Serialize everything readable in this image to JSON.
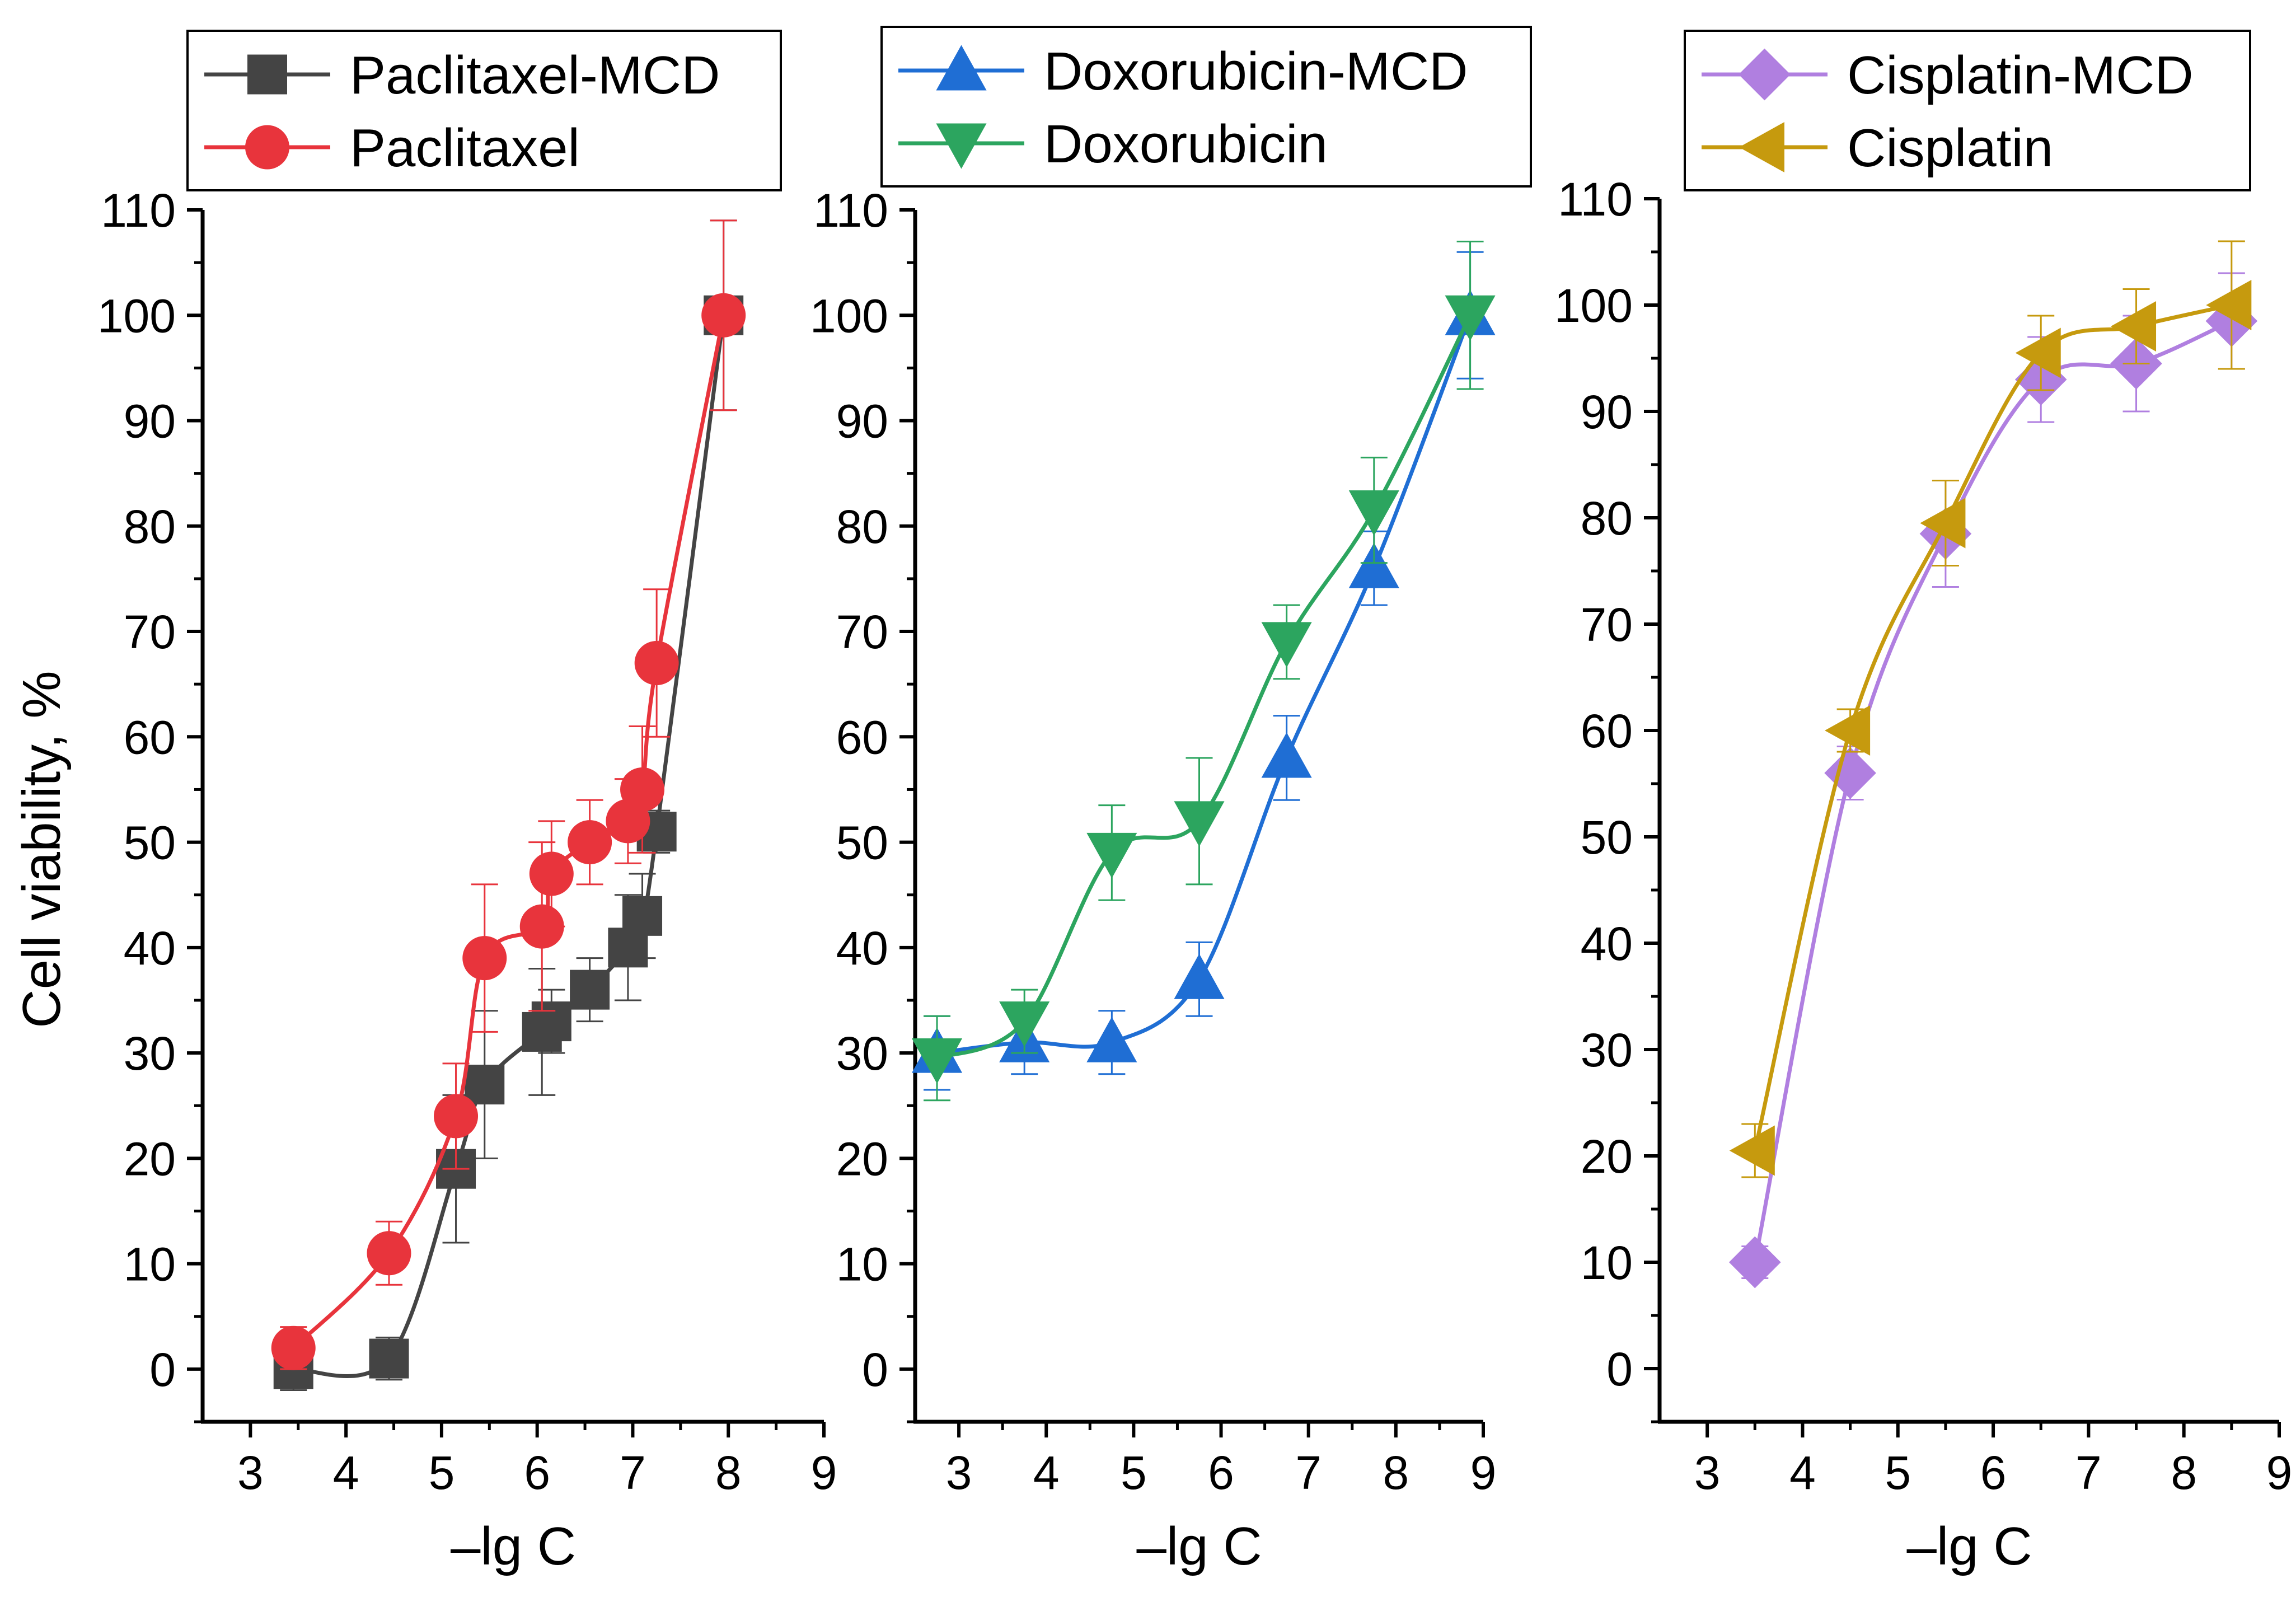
{
  "chart_data": [
    {
      "type": "line",
      "xlabel": "–lg C",
      "ylabel": "Cell viability, %",
      "xlim": [
        2.5,
        9
      ],
      "ylim": [
        -5,
        110
      ],
      "xticks": [
        3,
        4,
        5,
        6,
        7,
        8,
        9
      ],
      "yticks": [
        0,
        10,
        20,
        30,
        40,
        50,
        60,
        70,
        80,
        90,
        100,
        110
      ],
      "legend": "top",
      "series": [
        {
          "name": "Paclitaxel-MCD",
          "color": "#444444",
          "marker": "square",
          "x": [
            3.45,
            4.45,
            5.15,
            5.45,
            6.05,
            6.15,
            6.55,
            6.95,
            7.1,
            7.25,
            7.95
          ],
          "y": [
            0,
            1,
            19,
            27,
            32,
            33,
            36,
            40,
            43,
            51,
            100
          ],
          "err": [
            2,
            2,
            7,
            7,
            6,
            3,
            3,
            5,
            4,
            2,
            9
          ]
        },
        {
          "name": "Paclitaxel",
          "color": "#e8343c",
          "marker": "circle",
          "x": [
            3.45,
            4.45,
            5.15,
            5.45,
            6.05,
            6.15,
            6.55,
            6.95,
            7.1,
            7.25,
            7.95
          ],
          "y": [
            2,
            11,
            24,
            39,
            42,
            47,
            50,
            52,
            55,
            67,
            100
          ],
          "err": [
            2,
            3,
            5,
            7,
            8,
            5,
            4,
            4,
            6,
            7,
            9
          ]
        }
      ]
    },
    {
      "type": "line",
      "xlabel": "–lg C",
      "ylabel": "",
      "xlim": [
        2.5,
        9
      ],
      "ylim": [
        -5,
        110
      ],
      "xticks": [
        3,
        4,
        5,
        6,
        7,
        8,
        9
      ],
      "yticks": [
        0,
        10,
        20,
        30,
        40,
        50,
        60,
        70,
        80,
        90,
        100,
        110
      ],
      "legend": "top",
      "series": [
        {
          "name": "Doxorubicin-MCD",
          "color": "#1f6ed4",
          "marker": "triangle-up",
          "x": [
            2.75,
            3.75,
            4.75,
            5.75,
            6.75,
            7.75,
            8.85
          ],
          "y": [
            30,
            31,
            31,
            37,
            58,
            76,
            100
          ],
          "err": [
            3.5,
            3,
            3,
            3.5,
            4,
            3.5,
            6
          ]
        },
        {
          "name": "Doxorubicin",
          "color": "#2ca55f",
          "marker": "triangle-down",
          "x": [
            2.75,
            3.75,
            4.75,
            5.75,
            6.75,
            7.75,
            8.85
          ],
          "y": [
            29.5,
            33,
            49,
            52,
            69,
            81.5,
            100
          ],
          "err": [
            4,
            3,
            4.5,
            6,
            3.5,
            5,
            7
          ]
        }
      ]
    },
    {
      "type": "line",
      "xlabel": "–lg C",
      "ylabel": "",
      "xlim": [
        2.5,
        9
      ],
      "ylim": [
        -5,
        110
      ],
      "xticks": [
        3,
        4,
        5,
        6,
        7,
        8,
        9
      ],
      "yticks": [
        0,
        10,
        20,
        30,
        40,
        50,
        60,
        70,
        80,
        90,
        100,
        110
      ],
      "legend": "top",
      "series": [
        {
          "name": "Cisplatin-MCD",
          "color": "#b07fe0",
          "marker": "diamond",
          "x": [
            3.5,
            4.5,
            5.5,
            6.5,
            7.5,
            8.5
          ],
          "y": [
            10,
            56,
            78.5,
            93,
            94.5,
            98.5
          ],
          "err": [
            1.5,
            2.5,
            5,
            4,
            4.5,
            4.5
          ]
        },
        {
          "name": "Cisplatin",
          "color": "#c69a0e",
          "marker": "triangle-left",
          "x": [
            3.5,
            4.5,
            5.5,
            6.5,
            7.5,
            8.5
          ],
          "y": [
            20.5,
            60,
            79.5,
            95.5,
            98,
            100
          ],
          "err": [
            2.5,
            2,
            4,
            3.5,
            3.5,
            6
          ]
        }
      ]
    }
  ]
}
